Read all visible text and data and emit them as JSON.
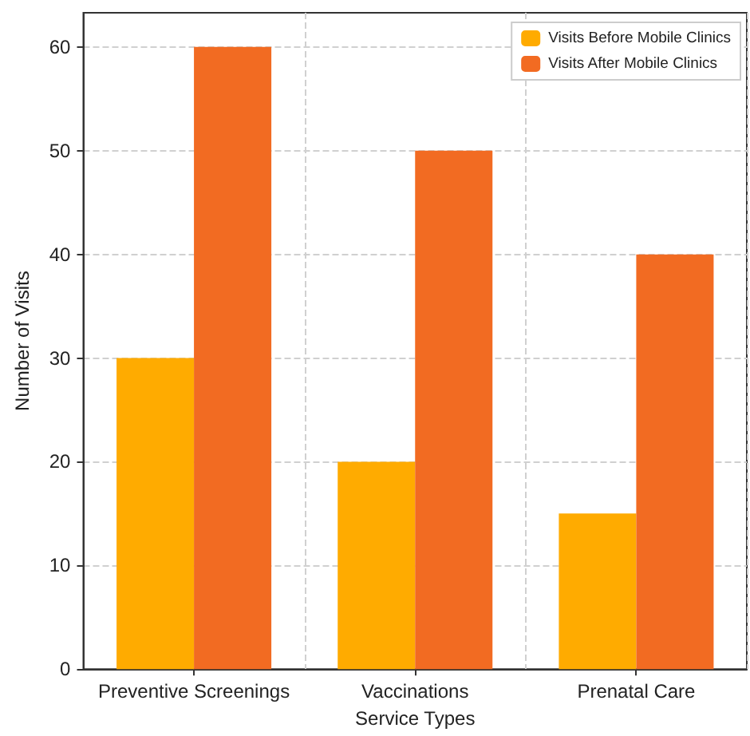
{
  "chart_data": {
    "type": "bar",
    "xlabel": "Service Types",
    "ylabel": "Number of Visits",
    "categories": [
      "Preventive Screenings",
      "Vaccinations",
      "Prenatal Care"
    ],
    "series": [
      {
        "name": "Visits Before Mobile Clinics",
        "color": "#ffab00",
        "values": [
          30,
          20,
          15
        ]
      },
      {
        "name": "Visits After Mobile Clinics",
        "color": "#f26b22",
        "values": [
          60,
          50,
          40
        ]
      }
    ],
    "ylim": [
      0,
      63.3
    ],
    "yticks": [
      0,
      10,
      20,
      30,
      40,
      50,
      60
    ],
    "grid": true,
    "legend": "top right"
  }
}
